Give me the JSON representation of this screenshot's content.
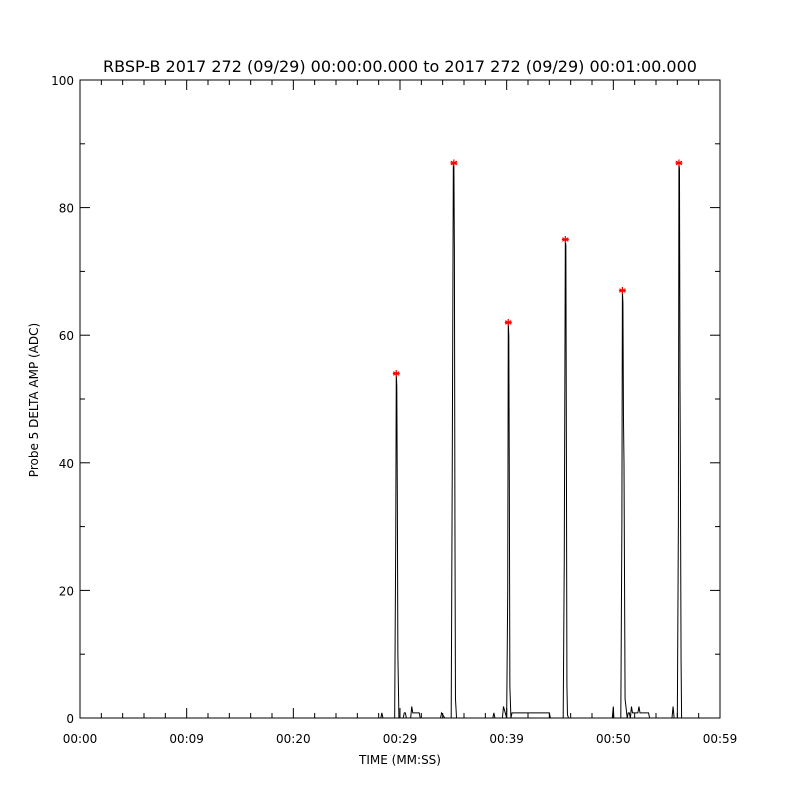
{
  "chart_data": {
    "type": "line",
    "title": "RBSP-B 2017 272 (09/29) 00:00:00.000 to 2017 272 (09/29) 00:01:00.000",
    "xlabel": "TIME (MM:SS)",
    "ylabel": "Probe 5 DELTA AMP (ADC)",
    "xlim": [
      0,
      60
    ],
    "ylim": [
      0,
      100
    ],
    "x_ticks": [
      {
        "value": 0,
        "label": "00:00"
      },
      {
        "value": 10,
        "label": "00:09"
      },
      {
        "value": 20,
        "label": "00:20"
      },
      {
        "value": 30,
        "label": "00:29"
      },
      {
        "value": 40,
        "label": "00:39"
      },
      {
        "value": 50,
        "label": "00:50"
      },
      {
        "value": 60,
        "label": "00:59"
      }
    ],
    "y_ticks": [
      0,
      20,
      40,
      60,
      80,
      100
    ],
    "grid": false,
    "series": [
      {
        "color": "#000000",
        "x": [
          0,
          28.2,
          28.3,
          28.4,
          29.5,
          29.6,
          29.65,
          29.7,
          29.75,
          29.8,
          29.9,
          30.3,
          30.4,
          30.5,
          30.6,
          31.0,
          31.1,
          31.2,
          31.3,
          31.8,
          31.9,
          33.8,
          33.9,
          34.2,
          34.5,
          34.8,
          34.9,
          35.0,
          35.05,
          35.1,
          35.15,
          35.2,
          35.3,
          38.7,
          38.8,
          38.9,
          39.6,
          39.7,
          40.0,
          40.1,
          40.15,
          40.2,
          40.25,
          40.3,
          40.4,
          40.5,
          40.6,
          44.0,
          44.1,
          45.3,
          45.4,
          45.5,
          45.55,
          45.6,
          45.65,
          45.7,
          45.8,
          49.9,
          50.0,
          50.05,
          50.1,
          50.5,
          50.7,
          50.8,
          50.85,
          50.9,
          50.95,
          51.0,
          51.1,
          51.3,
          51.4,
          51.5,
          51.6,
          51.7,
          51.8,
          52.2,
          52.3,
          52.4,
          52.5,
          52.6,
          53.0,
          53.2,
          53.3,
          53.4,
          55.5,
          55.6,
          55.7,
          56.0,
          56.1,
          56.15,
          56.2,
          56.25,
          56.3,
          56.35,
          56.4,
          56.5,
          60
        ],
        "y": [
          0,
          0,
          0.8,
          0,
          0,
          28,
          54,
          52,
          35,
          10,
          0,
          0,
          0.8,
          0.8,
          0,
          0,
          1.8,
          0.8,
          0.8,
          0.8,
          0,
          0,
          0.8,
          0,
          0,
          0,
          40,
          87,
          87,
          73,
          31,
          3,
          0,
          0,
          0.8,
          0,
          0,
          1.8,
          0,
          20,
          62,
          60,
          37,
          5,
          0,
          0.8,
          0.8,
          0.8,
          0,
          0,
          25,
          75,
          74,
          42,
          5,
          0.5,
          0,
          0,
          1.8,
          0,
          0,
          0,
          0,
          30,
          67,
          65,
          47,
          40,
          3,
          0,
          0.8,
          0.8,
          0,
          1.8,
          0.8,
          0.8,
          0.8,
          1.8,
          0.8,
          0.8,
          0.8,
          0.8,
          0.8,
          0,
          0,
          1.8,
          0,
          0,
          31,
          87,
          86,
          52,
          33,
          9,
          0,
          0,
          0
        ]
      },
      {
        "color": "#ff0000",
        "marker": "asterisk",
        "x": [
          29.65,
          35.05,
          40.15,
          45.5,
          50.85,
          56.15
        ],
        "y": [
          54,
          87,
          62,
          75,
          67,
          87
        ]
      }
    ]
  }
}
